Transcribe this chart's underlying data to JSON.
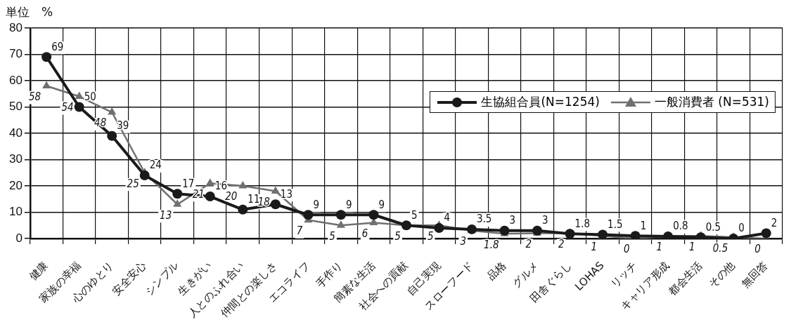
{
  "chart_data": {
    "type": "line",
    "ylabel": "単位　%",
    "categories": [
      "健康",
      "家族の幸福",
      "心のゆとり",
      "安全安心",
      "シンプル",
      "生きがい",
      "人とのふれ合い",
      "仲間との楽しさ",
      "エコライフ",
      "手作り",
      "簡素な生活",
      "社会への貢献",
      "自己実現",
      "スローフード",
      "品格",
      "グルメ",
      "田舎ぐらし",
      "LOHAS",
      "リッチ",
      "キャリア形成",
      "都会生活",
      "その他",
      "無回答"
    ],
    "series": [
      {
        "name": "生協組合員(N=1254)",
        "color": "#1a1a1a",
        "marker": "circle",
        "values": [
          69,
          50,
          39,
          24,
          17,
          16,
          11,
          13,
          9,
          9,
          9,
          5,
          4,
          3.5,
          3,
          3,
          1.8,
          1.5,
          1,
          0.8,
          0.5,
          0,
          2
        ]
      },
      {
        "name": "一般消費者 (N=531)",
        "color": "#707070",
        "marker": "triangle",
        "values": [
          58,
          54,
          48,
          25,
          13,
          21,
          20,
          18,
          7,
          5,
          6,
          5,
          5,
          3,
          1.8,
          2,
          2,
          1,
          0,
          1,
          1,
          0.5,
          0
        ]
      }
    ],
    "ylim": [
      0,
      80
    ],
    "yticks": [
      0,
      10,
      20,
      30,
      40,
      50,
      60,
      70,
      80
    ],
    "grid": true,
    "legend": "right",
    "data_labels": true
  }
}
